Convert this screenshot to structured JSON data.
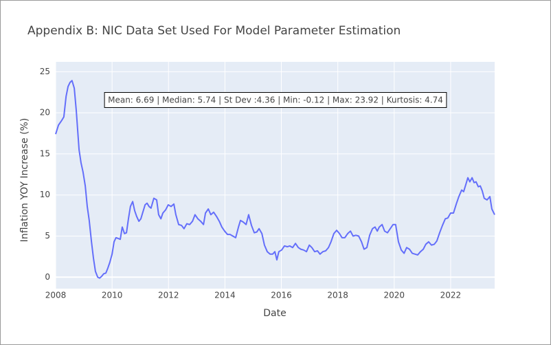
{
  "chart_data": {
    "type": "line",
    "title": "Appendix B: NIC Data Set Used For Model Parameter Estimation",
    "x_label": "Date",
    "y_label": "Inflation YOY Increase (%)",
    "annotation": "Mean: 6.69 | Median: 5.74 | St Dev :4.36 | Min: -0.12 | Max: 23.92 | Kurtosis: 4.74",
    "x": [
      2008.0,
      2008.1,
      2008.22,
      2008.29,
      2008.37,
      2008.44,
      2008.51,
      2008.58,
      2008.66,
      2008.73,
      2008.83,
      2008.9,
      2008.97,
      2009.05,
      2009.12,
      2009.19,
      2009.27,
      2009.34,
      2009.41,
      2009.49,
      2009.56,
      2009.63,
      2009.7,
      2009.78,
      2009.85,
      2009.92,
      2010.0,
      2010.07,
      2010.14,
      2010.22,
      2010.29,
      2010.36,
      2010.44,
      2010.51,
      2010.58,
      2010.65,
      2010.73,
      2010.8,
      2010.87,
      2010.95,
      2011.02,
      2011.09,
      2011.17,
      2011.24,
      2011.31,
      2011.38,
      2011.48,
      2011.58,
      2011.65,
      2011.73,
      2011.8,
      2011.9,
      2011.99,
      2012.09,
      2012.19,
      2012.26,
      2012.36,
      2012.46,
      2012.55,
      2012.65,
      2012.75,
      2012.85,
      2012.94,
      2013.04,
      2013.14,
      2013.24,
      2013.31,
      2013.41,
      2013.5,
      2013.6,
      2013.7,
      2013.8,
      2013.89,
      2013.99,
      2014.09,
      2014.18,
      2014.28,
      2014.38,
      2014.48,
      2014.55,
      2014.65,
      2014.75,
      2014.84,
      2014.94,
      2015.04,
      2015.13,
      2015.21,
      2015.31,
      2015.4,
      2015.5,
      2015.6,
      2015.69,
      2015.77,
      2015.84,
      2015.91,
      2016.01,
      2016.11,
      2016.21,
      2016.3,
      2016.4,
      2016.5,
      2016.6,
      2016.69,
      2016.79,
      2016.89,
      2016.99,
      2017.08,
      2017.18,
      2017.28,
      2017.37,
      2017.47,
      2017.57,
      2017.67,
      2017.76,
      2017.86,
      2017.96,
      2018.06,
      2018.15,
      2018.25,
      2018.35,
      2018.45,
      2018.54,
      2018.64,
      2018.74,
      2018.84,
      2018.93,
      2019.03,
      2019.13,
      2019.23,
      2019.32,
      2019.4,
      2019.47,
      2019.57,
      2019.66,
      2019.76,
      2019.86,
      2019.96,
      2020.05,
      2020.15,
      2020.25,
      2020.35,
      2020.44,
      2020.54,
      2020.64,
      2020.74,
      2020.83,
      2020.93,
      2021.03,
      2021.12,
      2021.22,
      2021.32,
      2021.42,
      2021.51,
      2021.61,
      2021.71,
      2021.81,
      2021.9,
      2022.0,
      2022.1,
      2022.2,
      2022.29,
      2022.39,
      2022.46,
      2022.54,
      2022.61,
      2022.68,
      2022.76,
      2022.83,
      2022.9,
      2022.98,
      2023.05,
      2023.12,
      2023.19,
      2023.29,
      2023.39,
      2023.46,
      2023.56
    ],
    "series": [
      {
        "color": "#636efa",
        "values": [
          17.4,
          18.5,
          19.1,
          19.5,
          22.0,
          23.2,
          23.7,
          23.92,
          23.0,
          20.3,
          15.5,
          13.9,
          12.8,
          11.1,
          8.6,
          6.9,
          4.3,
          2.3,
          0.7,
          0.0,
          -0.12,
          0.1,
          0.4,
          0.5,
          1.1,
          1.8,
          2.8,
          4.3,
          4.8,
          4.7,
          4.6,
          6.1,
          5.3,
          5.4,
          7.1,
          8.6,
          9.2,
          8.1,
          7.4,
          6.8,
          7.1,
          7.9,
          8.8,
          9.0,
          8.6,
          8.4,
          9.6,
          9.4,
          7.6,
          7.1,
          7.8,
          8.2,
          8.8,
          8.6,
          8.9,
          7.6,
          6.4,
          6.3,
          5.9,
          6.5,
          6.4,
          6.8,
          7.6,
          7.1,
          6.8,
          6.4,
          7.8,
          8.3,
          7.6,
          7.9,
          7.4,
          6.8,
          6.1,
          5.6,
          5.2,
          5.2,
          5.0,
          4.8,
          6.1,
          6.9,
          6.7,
          6.4,
          7.6,
          6.3,
          5.4,
          5.5,
          5.9,
          5.3,
          3.9,
          3.1,
          2.8,
          2.8,
          3.1,
          2.1,
          3.1,
          3.3,
          3.8,
          3.7,
          3.8,
          3.6,
          4.1,
          3.6,
          3.4,
          3.3,
          3.1,
          3.9,
          3.6,
          3.1,
          3.2,
          2.8,
          3.1,
          3.2,
          3.6,
          4.3,
          5.3,
          5.7,
          5.3,
          4.8,
          4.8,
          5.3,
          5.6,
          5.0,
          5.1,
          5.0,
          4.3,
          3.4,
          3.6,
          5.1,
          5.9,
          6.1,
          5.6,
          6.1,
          6.4,
          5.6,
          5.4,
          5.9,
          6.4,
          6.4,
          4.3,
          3.3,
          2.9,
          3.6,
          3.4,
          2.9,
          2.8,
          2.7,
          3.1,
          3.4,
          4.0,
          4.3,
          3.9,
          4.0,
          4.4,
          5.4,
          6.3,
          7.1,
          7.2,
          7.8,
          7.8,
          8.9,
          9.8,
          10.6,
          10.4,
          11.3,
          12.1,
          11.6,
          12.1,
          11.5,
          11.6,
          11.0,
          11.1,
          10.5,
          9.6,
          9.4,
          9.8,
          8.3,
          7.6
        ]
      }
    ],
    "xlim": [
      2008,
      2023.56
    ],
    "xticks": [
      2008,
      2010,
      2012,
      2014,
      2016,
      2018,
      2020,
      2022
    ],
    "ylim": [
      -1.4,
      26.2
    ],
    "yticks": [
      0,
      5,
      10,
      15,
      20,
      25
    ],
    "grid": true
  }
}
